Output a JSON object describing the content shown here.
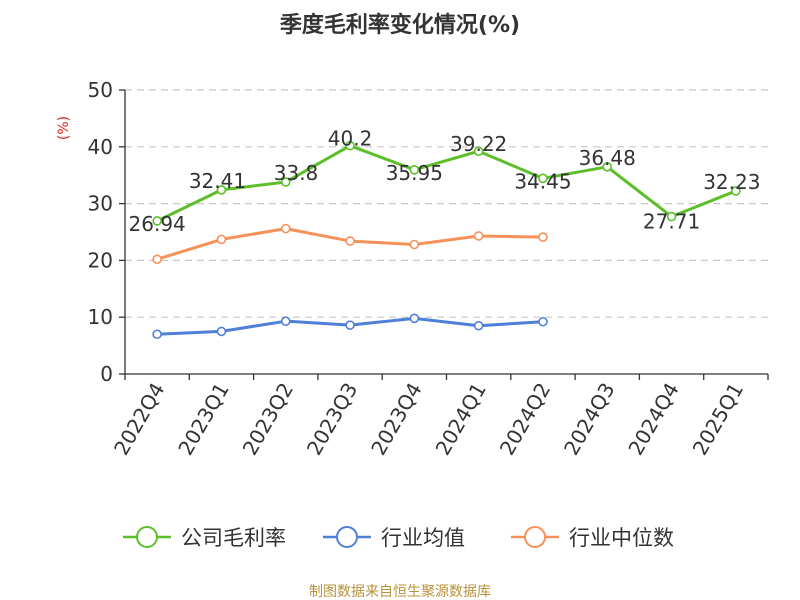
{
  "chart_data": {
    "type": "line",
    "title": "季度毛利率变化情况(%)",
    "ylabel": "(%)",
    "xlabel": "",
    "ylim": [
      0,
      50
    ],
    "yticks": [
      0,
      10,
      20,
      30,
      40,
      50
    ],
    "grid": true,
    "legend_position": "bottom",
    "categories": [
      "2022Q4",
      "2023Q1",
      "2023Q2",
      "2023Q3",
      "2023Q4",
      "2024Q1",
      "2024Q2",
      "2024Q3",
      "2024Q4",
      "2025Q1"
    ],
    "series": [
      {
        "name": "公司毛利率",
        "color": "#5cbf2a",
        "show_labels": true,
        "values": [
          26.94,
          32.41,
          33.8,
          40.2,
          35.95,
          39.22,
          34.45,
          36.48,
          27.71,
          32.23
        ]
      },
      {
        "name": "行业均值",
        "color": "#4e7fd9",
        "show_labels": false,
        "values": [
          7.0,
          7.5,
          9.3,
          8.6,
          9.8,
          8.5,
          9.2,
          null,
          null,
          null
        ]
      },
      {
        "name": "行业中位数",
        "color": "#f7915a",
        "show_labels": false,
        "values": [
          20.2,
          23.7,
          25.6,
          23.4,
          22.8,
          24.3,
          24.1,
          null,
          null,
          null
        ]
      }
    ],
    "source": "制图数据来自恒生聚源数据库"
  }
}
